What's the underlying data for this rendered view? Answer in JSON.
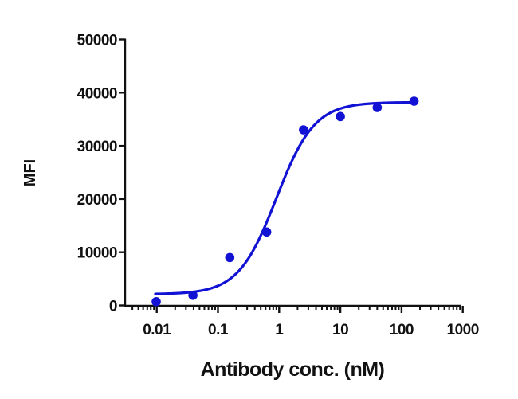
{
  "chart_data": {
    "type": "scatter",
    "title": "",
    "xlabel": "Antibody conc. (nM)",
    "ylabel": "MFI",
    "xscale": "log",
    "xlim": [
      0.004,
      1000
    ],
    "ylim": [
      0,
      50000
    ],
    "x_ticks": [
      0.01,
      0.1,
      1,
      10,
      100,
      1000
    ],
    "x_tick_labels": [
      "0.01",
      "0.1",
      "1",
      "10",
      "100",
      "1000"
    ],
    "y_ticks": [
      0,
      10000,
      20000,
      30000,
      40000,
      50000
    ],
    "y_tick_labels": [
      "0",
      "10000",
      "20000",
      "30000",
      "40000",
      "50000"
    ],
    "grid": false,
    "legend": null,
    "series": [
      {
        "name": "MFI",
        "color": "#1212d4",
        "marker": "circle",
        "x": [
          0.0098,
          0.039,
          0.156,
          0.625,
          2.5,
          10,
          40,
          160
        ],
        "y": [
          700,
          1900,
          9000,
          13800,
          33000,
          35500,
          37200,
          38400
        ]
      }
    ],
    "fit": {
      "model": "4PL",
      "bottom": 2100,
      "top": 38200,
      "ec50": 0.9,
      "hill": 1.4,
      "x_range": [
        0.0095,
        165
      ],
      "color": "#1212d4"
    }
  }
}
